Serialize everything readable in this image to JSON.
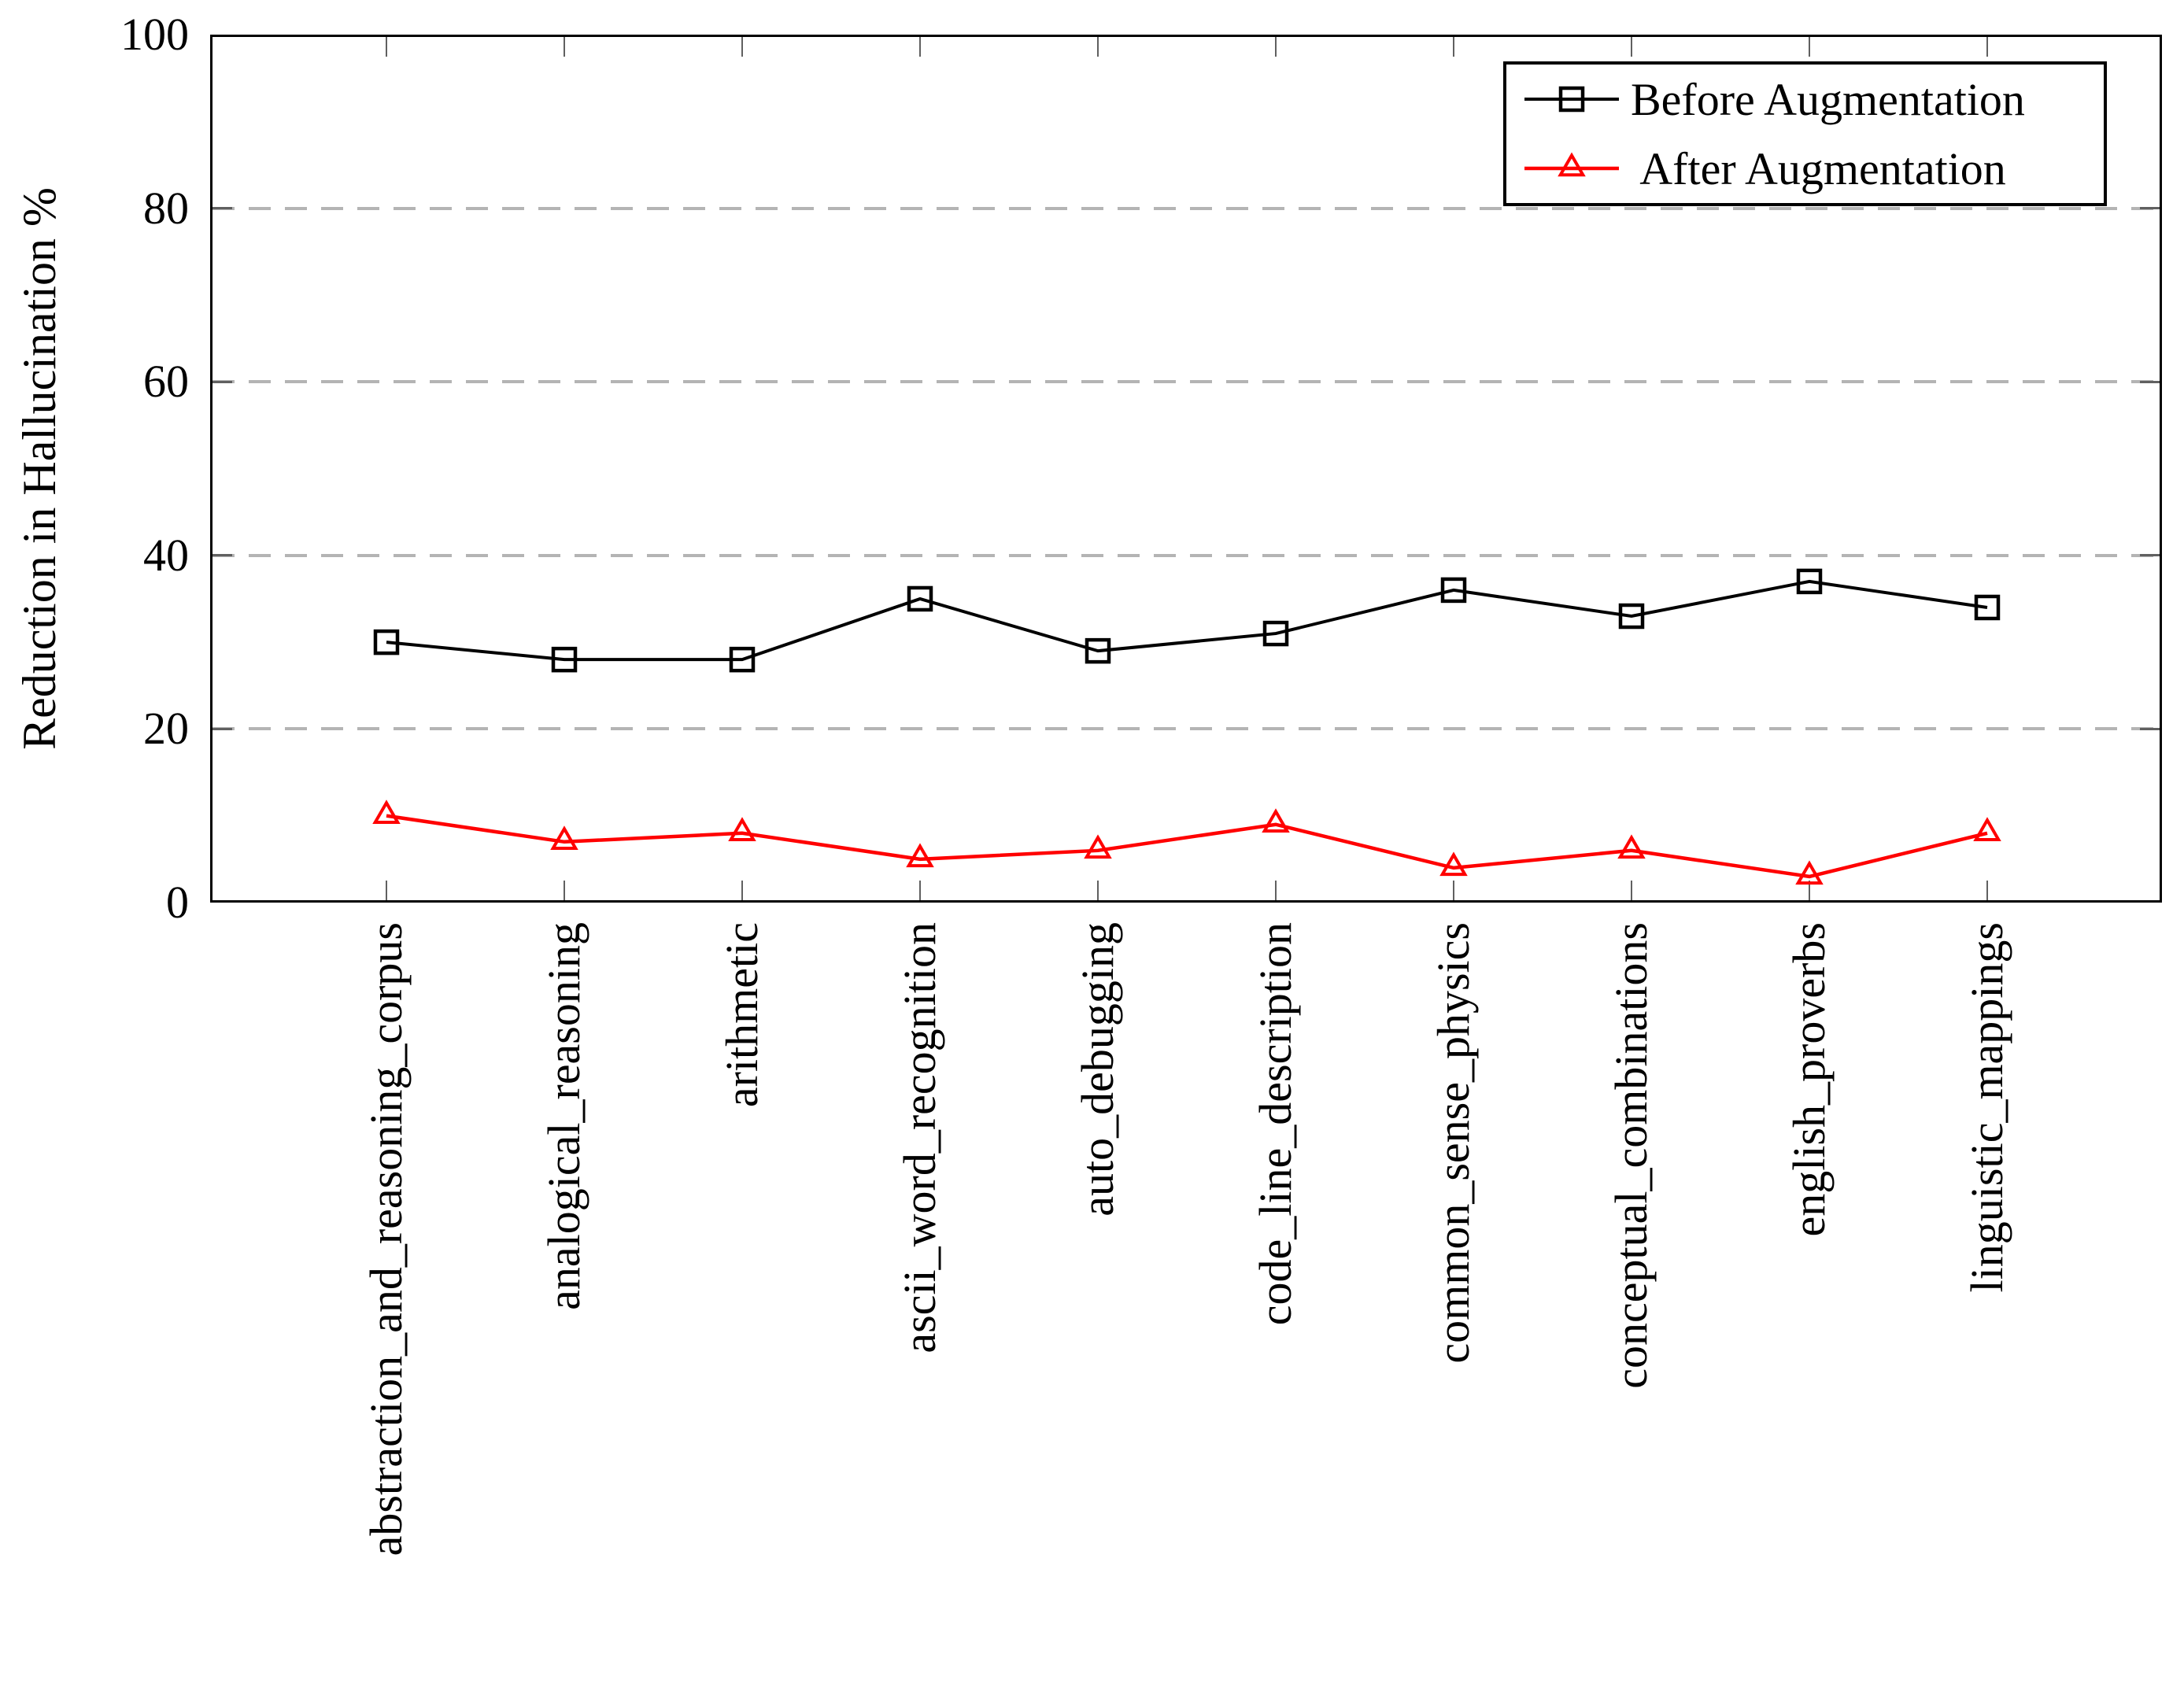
{
  "chart_data": {
    "type": "line",
    "categories": [
      "abstraction_and_reasoning_corpus",
      "analogical_reasoning",
      "arithmetic",
      "ascii_word_recognition",
      "auto_debugging",
      "code_line_description",
      "common_sense_physics",
      "conceptual_combinations",
      "english_proverbs",
      "linguistic_mappings"
    ],
    "series": [
      {
        "name": "Before Augmentation",
        "marker": "square",
        "color": "#000000",
        "values": [
          30,
          28,
          28,
          35,
          29,
          31,
          36,
          33,
          37,
          34
        ]
      },
      {
        "name": "After Augmentation",
        "marker": "triangle",
        "color": "#ff0000",
        "values": [
          10,
          7,
          8,
          5,
          6,
          9,
          4,
          6,
          3,
          8
        ]
      }
    ],
    "title": "",
    "xlabel": "",
    "ylabel": "Reduction in Hallucination %",
    "ylim": [
      0,
      100
    ],
    "yticks": [
      0,
      20,
      40,
      60,
      80,
      100
    ],
    "grid": "horizontal-dashed",
    "legend_position": "top-right",
    "legend_labels": [
      "Before Augmentation",
      " After Augmentation"
    ]
  },
  "colors": {
    "background": "#ffffff",
    "axis": "#000000",
    "grid": "#b4b4b4",
    "tick": "#606060",
    "series_before": "#000000",
    "series_after": "#ff0000"
  }
}
